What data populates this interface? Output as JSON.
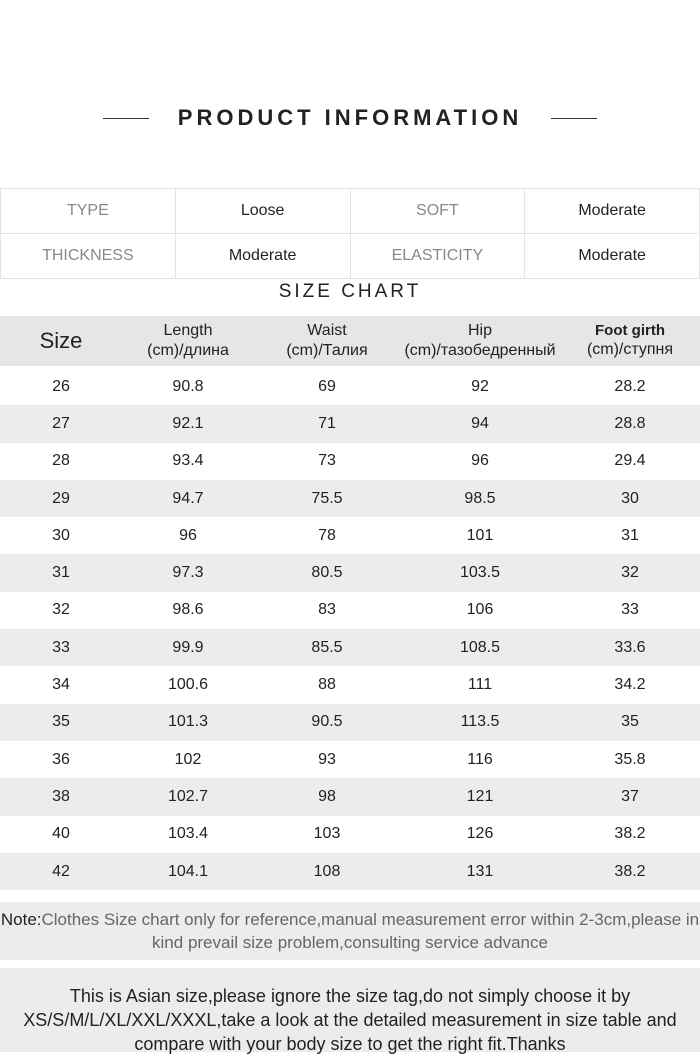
{
  "title": "PRODUCT INFORMATION",
  "info": [
    [
      {
        "k": "TYPE",
        "v": "Loose"
      },
      {
        "k": "SOFT",
        "v": "Moderate"
      }
    ],
    [
      {
        "k": "THICKNESS",
        "v": "Moderate"
      },
      {
        "k": "ELASTICITY",
        "v": "Moderate"
      }
    ]
  ],
  "size_chart_title": "SIZE CHART",
  "headers": [
    [
      "Size",
      ""
    ],
    [
      "Length",
      "(cm)/длина"
    ],
    [
      "Waist",
      "(cm)/Талия"
    ],
    [
      "Hip",
      "(cm)/тазобедренный"
    ],
    [
      "Foot girth",
      "(cm)/ступня"
    ]
  ],
  "rows": [
    [
      "26",
      "90.8",
      "69",
      "92",
      "28.2"
    ],
    [
      "27",
      "92.1",
      "71",
      "94",
      "28.8"
    ],
    [
      "28",
      "93.4",
      "73",
      "96",
      "29.4"
    ],
    [
      "29",
      "94.7",
      "75.5",
      "98.5",
      "30"
    ],
    [
      "30",
      "96",
      "78",
      "101",
      "31"
    ],
    [
      "31",
      "97.3",
      "80.5",
      "103.5",
      "32"
    ],
    [
      "32",
      "98.6",
      "83",
      "106",
      "33"
    ],
    [
      "33",
      "99.9",
      "85.5",
      "108.5",
      "33.6"
    ],
    [
      "34",
      "100.6",
      "88",
      "111",
      "34.2"
    ],
    [
      "35",
      "101.3",
      "90.5",
      "113.5",
      "35"
    ],
    [
      "36",
      "102",
      "93",
      "116",
      "35.8"
    ],
    [
      "38",
      "102.7",
      "98",
      "121",
      "37"
    ],
    [
      "40",
      "103.4",
      "103",
      "126",
      "38.2"
    ],
    [
      "42",
      "104.1",
      "108",
      "131",
      "38.2"
    ]
  ],
  "note_label": "Note:",
  "note_text": "Clothes Size chart only for reference,manual measurement error within 2-3cm,please in kind prevail size problem,consulting service advance",
  "asian_text": "This is Asian size,please ignore the size tag,do not simply choose it by XS/S/M/L/XL/XXL/XXXL,take a look at the detailed measurement in size table and compare with your body size to get the right fit.Thanks"
}
